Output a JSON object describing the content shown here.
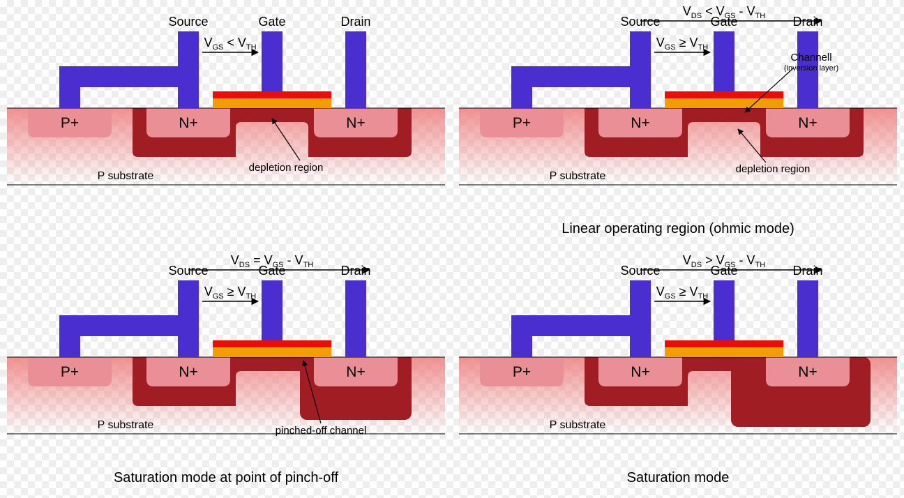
{
  "colors": {
    "metal": "#4a2ed0",
    "substrate_gradient_top": "rgba(239,133,133,0.9)",
    "substrate_gradient_bot": "rgba(239,133,133,0.0)",
    "doped": "#ea8f96",
    "depletion": "#a01d24",
    "oxide_top": "#e80f0b",
    "oxide_bot": "#f29d08",
    "channel": "#a01d24",
    "line": "#000000",
    "text": "#000000"
  },
  "labels": {
    "source": "Source",
    "gate": "Gate",
    "drain": "Drain",
    "p_plus": "P+",
    "n_plus": "N+",
    "p_substrate": "P substrate",
    "depletion_region": "depletion region",
    "channel": "Channell",
    "channel_sub": "(inversion layer)",
    "pinched_off": "pinched-off channel"
  },
  "panels": [
    {
      "caption": "",
      "vgs_condition": "lt",
      "vds_condition": "",
      "mode": "cutoff"
    },
    {
      "caption": "Linear operating region (ohmic mode)",
      "vgs_condition": "ge",
      "vds_condition": "lt",
      "mode": "linear"
    },
    {
      "caption": "Saturation mode at point of pinch-off",
      "vgs_condition": "ge",
      "vds_condition": "eq",
      "mode": "pinchoff"
    },
    {
      "caption": "Saturation mode",
      "vgs_condition": "ge",
      "vds_condition": "gt",
      "mode": "saturation"
    }
  ],
  "fontsize": {
    "terminal": 18,
    "region": 21,
    "substrate": 16,
    "annotation": 15,
    "caption": 20,
    "equation": 18
  }
}
